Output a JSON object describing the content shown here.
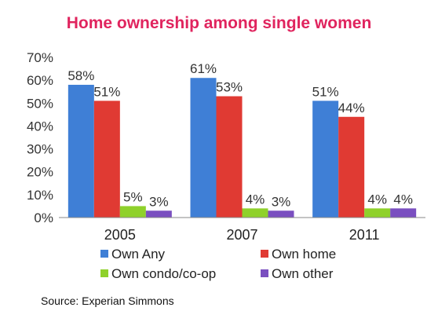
{
  "chart_data": {
    "type": "bar",
    "title": "Home ownership among single women",
    "categories": [
      "2005",
      "2007",
      "2011"
    ],
    "series": [
      {
        "name": "Own Any",
        "values": [
          58,
          61,
          51
        ],
        "labels": [
          "58%",
          "61%",
          "51%"
        ],
        "color": "#3f7fd6"
      },
      {
        "name": "Own home",
        "values": [
          51,
          53,
          44
        ],
        "labels": [
          "51%",
          "53%",
          "44%"
        ],
        "color": "#e03a33"
      },
      {
        "name": "Own condo/co-op",
        "values": [
          5,
          4,
          4
        ],
        "labels": [
          "5%",
          "4%",
          "4%"
        ],
        "color": "#8fd12b"
      },
      {
        "name": "Own other",
        "values": [
          3,
          3,
          4
        ],
        "labels": [
          "3%",
          "3%",
          "4%"
        ],
        "color": "#7a4fc0"
      }
    ],
    "yticks": [
      "0%",
      "10%",
      "20%",
      "30%",
      "40%",
      "50%",
      "60%",
      "70%"
    ],
    "ylim": [
      0,
      70
    ],
    "legend_position": "bottom",
    "grid": false
  },
  "source": "Source: Experian Simmons"
}
